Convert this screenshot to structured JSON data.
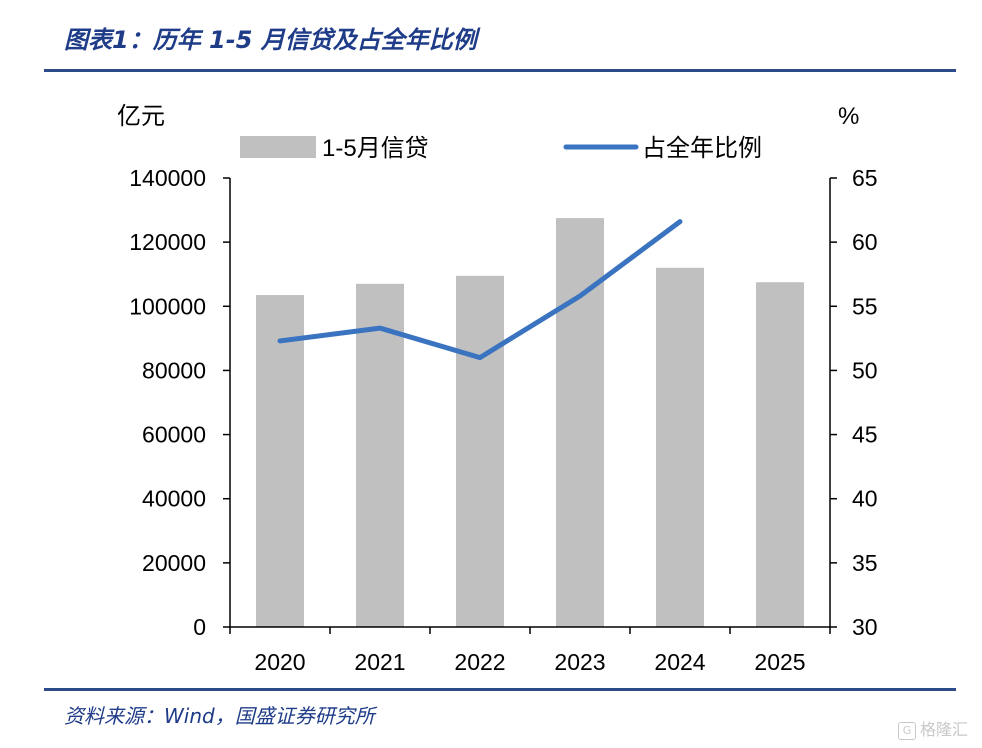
{
  "header": {
    "title": "图表1：历年 1-5 月信贷及占全年比例"
  },
  "footer": {
    "source": "资料来源：Wind，国盛证券研究所"
  },
  "watermark": {
    "logo_glyph": "G",
    "text": "格隆汇"
  },
  "colors": {
    "bar": "#c0c0c0",
    "line": "#3a73c0",
    "rule": "#2d4a8a",
    "title": "#1f3c88"
  },
  "chart_data": {
    "type": "bar",
    "categories": [
      "2020",
      "2021",
      "2022",
      "2023",
      "2024",
      "2025"
    ],
    "series": [
      {
        "name": "1-5月信贷",
        "type": "bar",
        "axis": "left",
        "values": [
          103500,
          107000,
          109500,
          127500,
          112000,
          107500
        ]
      },
      {
        "name": "占全年比例",
        "type": "line",
        "axis": "right",
        "values": [
          52.3,
          53.3,
          51.0,
          55.8,
          61.6,
          null
        ]
      }
    ],
    "left_axis": {
      "label": "亿元",
      "min": 0,
      "max": 140000,
      "ticks": [
        "0",
        "20000",
        "40000",
        "60000",
        "80000",
        "100000",
        "120000",
        "140000"
      ]
    },
    "right_axis": {
      "label": "%",
      "min": 30,
      "max": 65,
      "ticks": [
        "30",
        "35",
        "40",
        "45",
        "50",
        "55",
        "60",
        "65"
      ]
    },
    "legend_position": "top",
    "grid": false
  }
}
